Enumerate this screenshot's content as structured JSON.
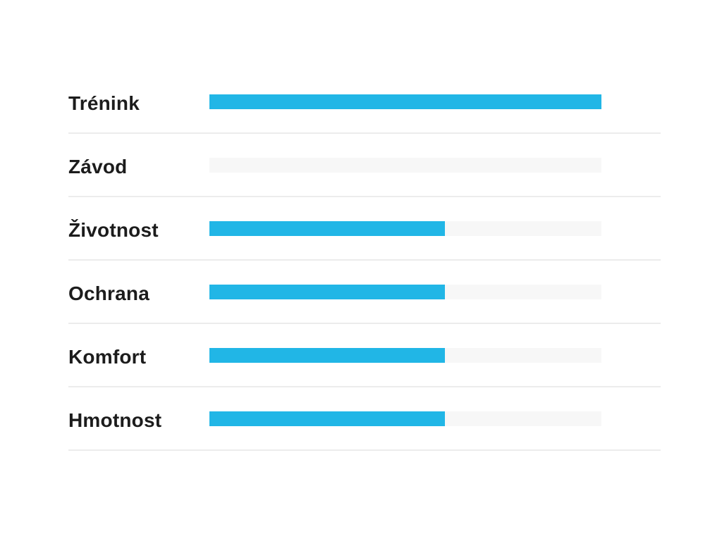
{
  "colors": {
    "bar_fill": "#21b6e6",
    "track": "#f7f7f7",
    "divider": "#ececec",
    "label": "#1c1c1c"
  },
  "chart_data": {
    "type": "bar",
    "orientation": "horizontal",
    "title": "",
    "xlabel": "",
    "ylabel": "",
    "xlim": [
      0,
      5
    ],
    "grid": false,
    "legend": "none",
    "categories": [
      "Trénink",
      "Závod",
      "Životnost",
      "Ochrana",
      "Komfort",
      "Hmotnost"
    ],
    "values": [
      5,
      0,
      3,
      3,
      3,
      3
    ]
  }
}
